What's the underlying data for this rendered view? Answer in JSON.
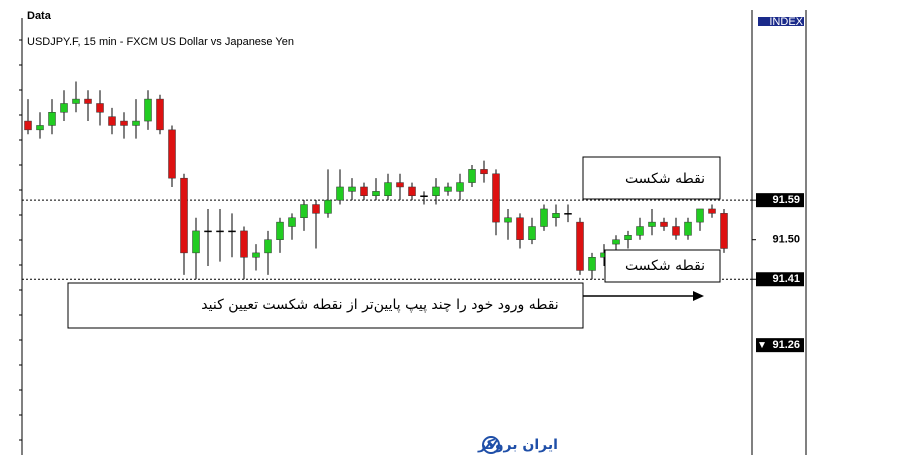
{
  "chart_data": {
    "type": "candlestick",
    "header": "Data",
    "title": "USDJPY.F, 15 min - FXCM US Dollar vs Japanese Yen",
    "indicator_label": "INDEX",
    "ylim": [
      91.01,
      92.0
    ],
    "yticks": [
      91.59,
      {
        "value": 91.5,
        "label": "91.50"
      },
      91.41
    ],
    "levels": [
      91.59,
      91.41
    ],
    "current_price": 91.26,
    "up_color": "#22cc22",
    "down_color": "#dd1111",
    "open": [
      91.77,
      91.75,
      91.76,
      91.79,
      91.81,
      91.82,
      91.81,
      91.78,
      91.77,
      91.76,
      91.77,
      91.82,
      91.75,
      91.64,
      91.47,
      91.52,
      91.52,
      91.52,
      91.52,
      91.46,
      91.47,
      91.5,
      91.53,
      91.55,
      91.58,
      91.56,
      91.59,
      91.61,
      91.62,
      91.6,
      91.6,
      91.63,
      91.62,
      91.6,
      91.6,
      91.61,
      91.61,
      91.63,
      91.66,
      91.65,
      91.54,
      91.55,
      91.5,
      91.53,
      91.55,
      91.56,
      91.54,
      91.43,
      91.46,
      91.49,
      91.5,
      91.51,
      91.53,
      91.54,
      91.53,
      91.51,
      91.54,
      91.57,
      91.56
    ],
    "high": [
      91.82,
      91.79,
      91.82,
      91.84,
      91.86,
      91.84,
      91.84,
      91.8,
      91.79,
      91.82,
      91.84,
      91.83,
      91.76,
      91.65,
      91.55,
      91.57,
      91.57,
      91.56,
      91.53,
      91.49,
      91.52,
      91.55,
      91.56,
      91.59,
      91.59,
      91.66,
      91.66,
      91.64,
      91.63,
      91.64,
      91.65,
      91.65,
      91.63,
      91.61,
      91.64,
      91.63,
      91.65,
      91.67,
      91.68,
      91.66,
      91.57,
      91.56,
      91.55,
      91.58,
      91.58,
      91.58,
      91.55,
      91.47,
      91.49,
      91.51,
      91.52,
      91.55,
      91.57,
      91.55,
      91.55,
      91.55,
      91.57,
      91.58,
      91.57
    ],
    "low": [
      91.74,
      91.73,
      91.74,
      91.77,
      91.79,
      91.77,
      91.76,
      91.74,
      91.73,
      91.73,
      91.75,
      91.74,
      91.62,
      91.42,
      91.41,
      91.44,
      91.45,
      91.46,
      91.41,
      91.43,
      91.42,
      91.47,
      91.5,
      91.52,
      91.48,
      91.55,
      91.58,
      91.59,
      91.59,
      91.59,
      91.59,
      91.59,
      91.59,
      91.58,
      91.58,
      91.6,
      91.59,
      91.62,
      91.63,
      91.51,
      91.5,
      91.48,
      91.49,
      91.52,
      91.53,
      91.54,
      91.42,
      91.41,
      91.44,
      91.47,
      91.48,
      91.5,
      91.51,
      91.52,
      91.5,
      91.5,
      91.52,
      91.55,
      91.47
    ],
    "close": [
      91.75,
      91.76,
      91.79,
      91.81,
      91.82,
      91.81,
      91.79,
      91.76,
      91.76,
      91.77,
      91.82,
      91.75,
      91.64,
      91.47,
      91.52,
      91.52,
      91.52,
      91.52,
      91.46,
      91.47,
      91.5,
      91.54,
      91.55,
      91.58,
      91.56,
      91.59,
      91.62,
      91.62,
      91.6,
      91.61,
      91.63,
      91.62,
      91.6,
      91.6,
      91.62,
      91.62,
      91.63,
      91.66,
      91.65,
      91.54,
      91.55,
      91.5,
      91.53,
      91.57,
      91.56,
      91.56,
      91.43,
      91.46,
      91.47,
      91.5,
      91.51,
      91.53,
      91.54,
      91.53,
      91.51,
      91.54,
      91.57,
      91.56,
      91.48
    ],
    "annotations": [
      "نقطه شکست",
      "نقطه شکست",
      "نقطه ورود خود را چند پیپ پایین‌تر از نقطه شکست تعیین کنید"
    ],
    "watermark": "ایران بروکر"
  }
}
